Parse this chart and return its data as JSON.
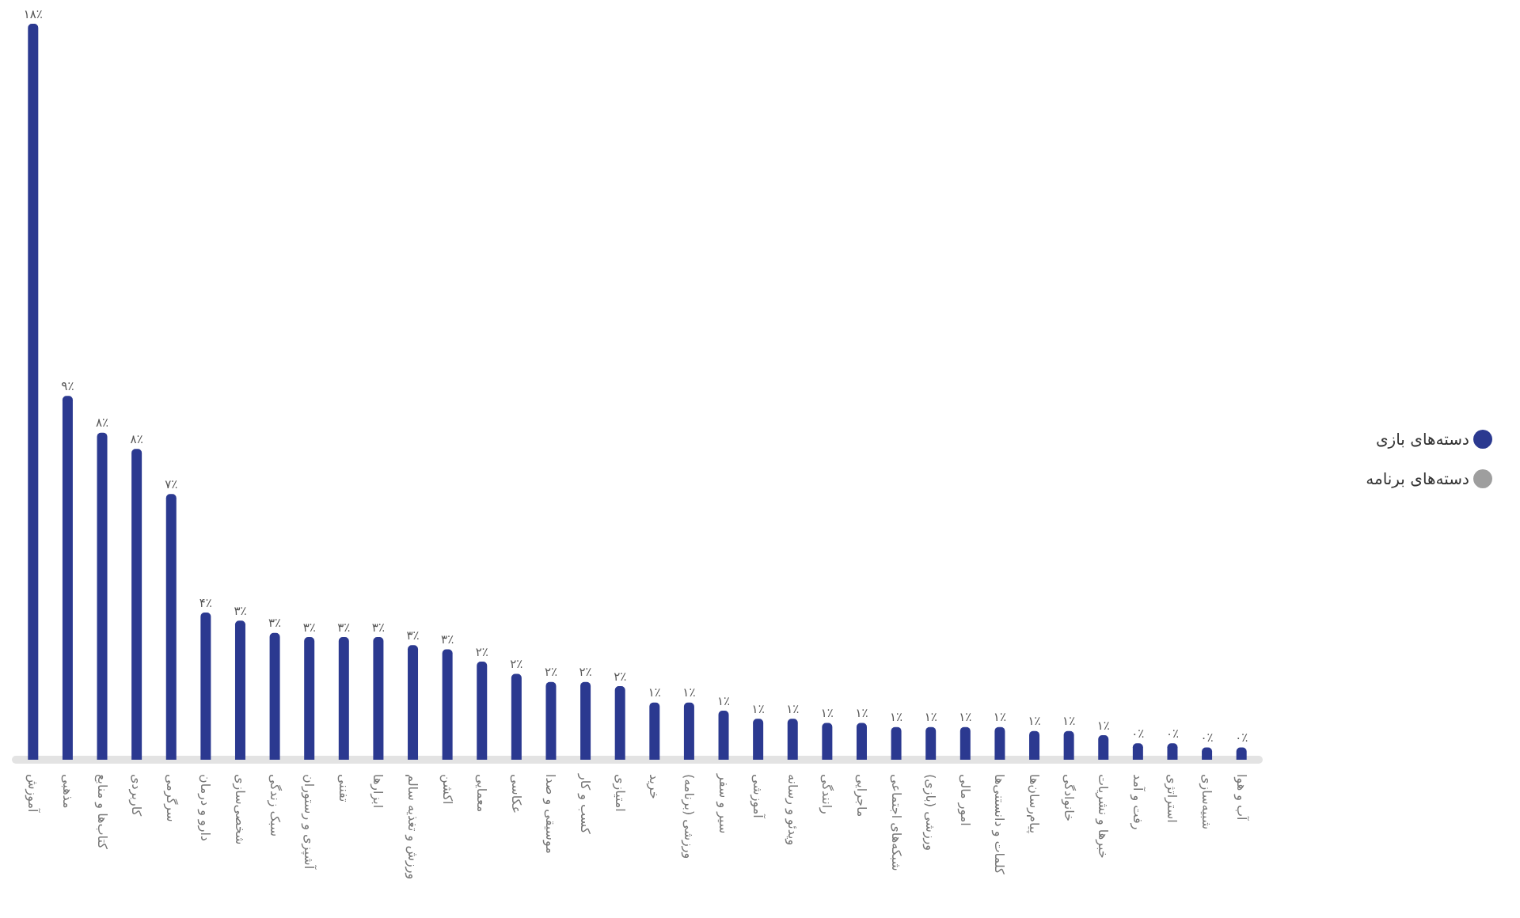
{
  "chart_data": {
    "type": "bar",
    "categories": [
      "آموزش",
      "مذهبی",
      "کتاب‌ها و منابع",
      "کاربردی",
      "سرگرمی",
      "دارو و درمان",
      "شخصی‌سازی",
      "سبک زندگی",
      "آشپزی و رستوران",
      "تفننی",
      "ابزارها",
      "ورزش و تغذیه سالم",
      "اکشن",
      "معمایی",
      "عکاسی",
      "موسیقی و صدا",
      "کسب و کار",
      "امتیازی",
      "خرید",
      "ورزشی (برنامه)",
      "سیر و سفر",
      "آموزشی",
      "ویدئو و رسانه",
      "رانندگی",
      "ماجرایی",
      "شبکه‌های اجتماعی",
      "ورزشی (بازی)",
      "امور مالی",
      "کلمات و دانستنی‌ها",
      "پیام‌رسان‌ها",
      "خانوادگی",
      "خبرها و نشریات",
      "رفت و آمد",
      "استراتژی",
      "شبیه‌سازی",
      "آب و هوا"
    ],
    "series": [
      {
        "name": "دسته‌های بازی",
        "color": "#2b3990",
        "values": [
          18.0,
          8.9,
          8.0,
          7.6,
          6.5,
          3.6,
          3.4,
          3.1,
          3.0,
          3.0,
          3.0,
          2.8,
          2.7,
          2.4,
          2.1,
          1.9,
          1.9,
          1.8,
          1.4,
          1.4,
          1.2,
          1.0,
          1.0,
          0.9,
          0.9,
          0.8,
          0.8,
          0.8,
          0.8,
          0.7,
          0.7,
          0.6,
          0.4,
          0.4,
          0.3,
          0.3
        ],
        "value_labels": [
          "۱۸٪",
          "۹٪",
          "۸٪",
          "۸٪",
          "۷٪",
          "۴٪",
          "۳٪",
          "۳٪",
          "۳٪",
          "۳٪",
          "۳٪",
          "۳٪",
          "۳٪",
          "۲٪",
          "۲٪",
          "۲٪",
          "۲٪",
          "۲٪",
          "۱٪",
          "۱٪",
          "۱٪",
          "۱٪",
          "۱٪",
          "۱٪",
          "۱٪",
          "۱٪",
          "۱٪",
          "۱٪",
          "۱٪",
          "۱٪",
          "۱٪",
          "۱٪",
          "۰٪",
          "۰٪",
          "۰٪",
          "۰٪"
        ]
      },
      {
        "name": "دسته‌های برنامه",
        "color": "#9e9e9e",
        "values": [
          null,
          null,
          null,
          null,
          null,
          null,
          null,
          null,
          null,
          null,
          null,
          null,
          null,
          null,
          null,
          null,
          null,
          null,
          null,
          null,
          null,
          null,
          null,
          null,
          null,
          null,
          null,
          null,
          null,
          null,
          null,
          null,
          null,
          null,
          null,
          null
        ]
      }
    ],
    "legend": "right"
  }
}
